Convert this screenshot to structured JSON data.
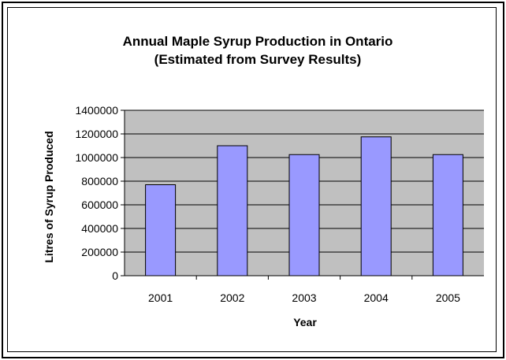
{
  "chart_data": {
    "type": "bar",
    "title": [
      "Annual Maple Syrup Production in Ontario",
      "(Estimated from Survey Results)"
    ],
    "xlabel": "Year",
    "ylabel": "Litres of Syrup Produced",
    "categories": [
      "2001",
      "2002",
      "2003",
      "2004",
      "2005"
    ],
    "values": [
      770000,
      1100000,
      1025000,
      1175000,
      1025000
    ],
    "ylim": [
      0,
      1400000
    ],
    "yticks": [
      0,
      200000,
      400000,
      600000,
      800000,
      1000000,
      1200000,
      1400000
    ],
    "grid": true,
    "legend": "none",
    "colors": {
      "bar": "#9999ff",
      "plot_background": "#c0c0c0",
      "gridline": "#000000"
    }
  }
}
